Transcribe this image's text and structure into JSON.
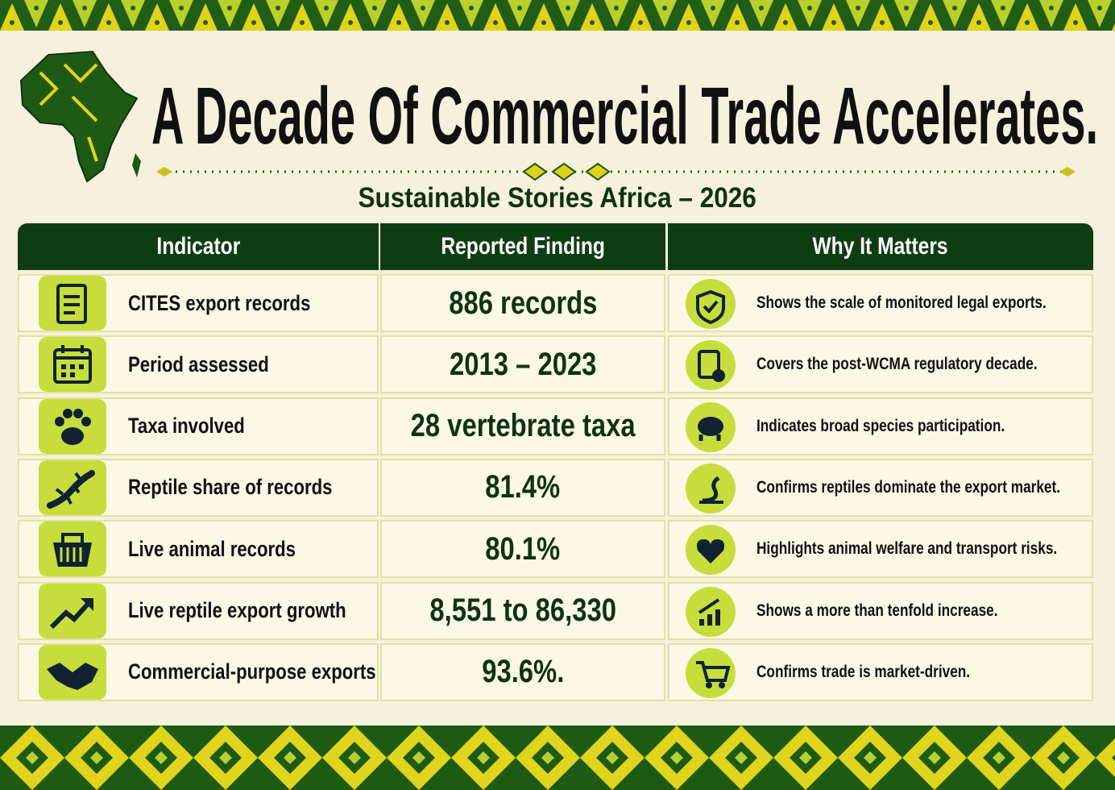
{
  "header": {
    "title": "A Decade Of Commercial Trade Accelerates.",
    "subtitle": "Sustainable Stories Africa – 2026"
  },
  "table": {
    "columns": [
      "Indicator",
      "Reported Finding",
      "Why It Matters"
    ],
    "rows": [
      {
        "indicator": "CITES export records",
        "finding": "886 records",
        "note": "Shows the scale of monitored legal exports."
      },
      {
        "indicator": "Period assessed",
        "finding": "2013 – 2023",
        "note": "Covers the post-WCMA regulatory decade."
      },
      {
        "indicator": "Taxa involved",
        "finding": "28 vertebrate taxa",
        "note": "Indicates broad species participation."
      },
      {
        "indicator": "Reptile share of records",
        "finding": "81.4%",
        "note": "Confirms reptiles dominate the export market."
      },
      {
        "indicator": "Live animal records",
        "finding": "80.1%",
        "note": "Highlights animal welfare and transport risks."
      },
      {
        "indicator": "Live reptile export growth",
        "finding": "8,551 to 86,330",
        "note": "Shows a more than tenfold increase."
      },
      {
        "indicator": "Commercial-purpose exports",
        "finding": "93.6%.",
        "note": "Confirms trade is market-driven."
      }
    ]
  }
}
